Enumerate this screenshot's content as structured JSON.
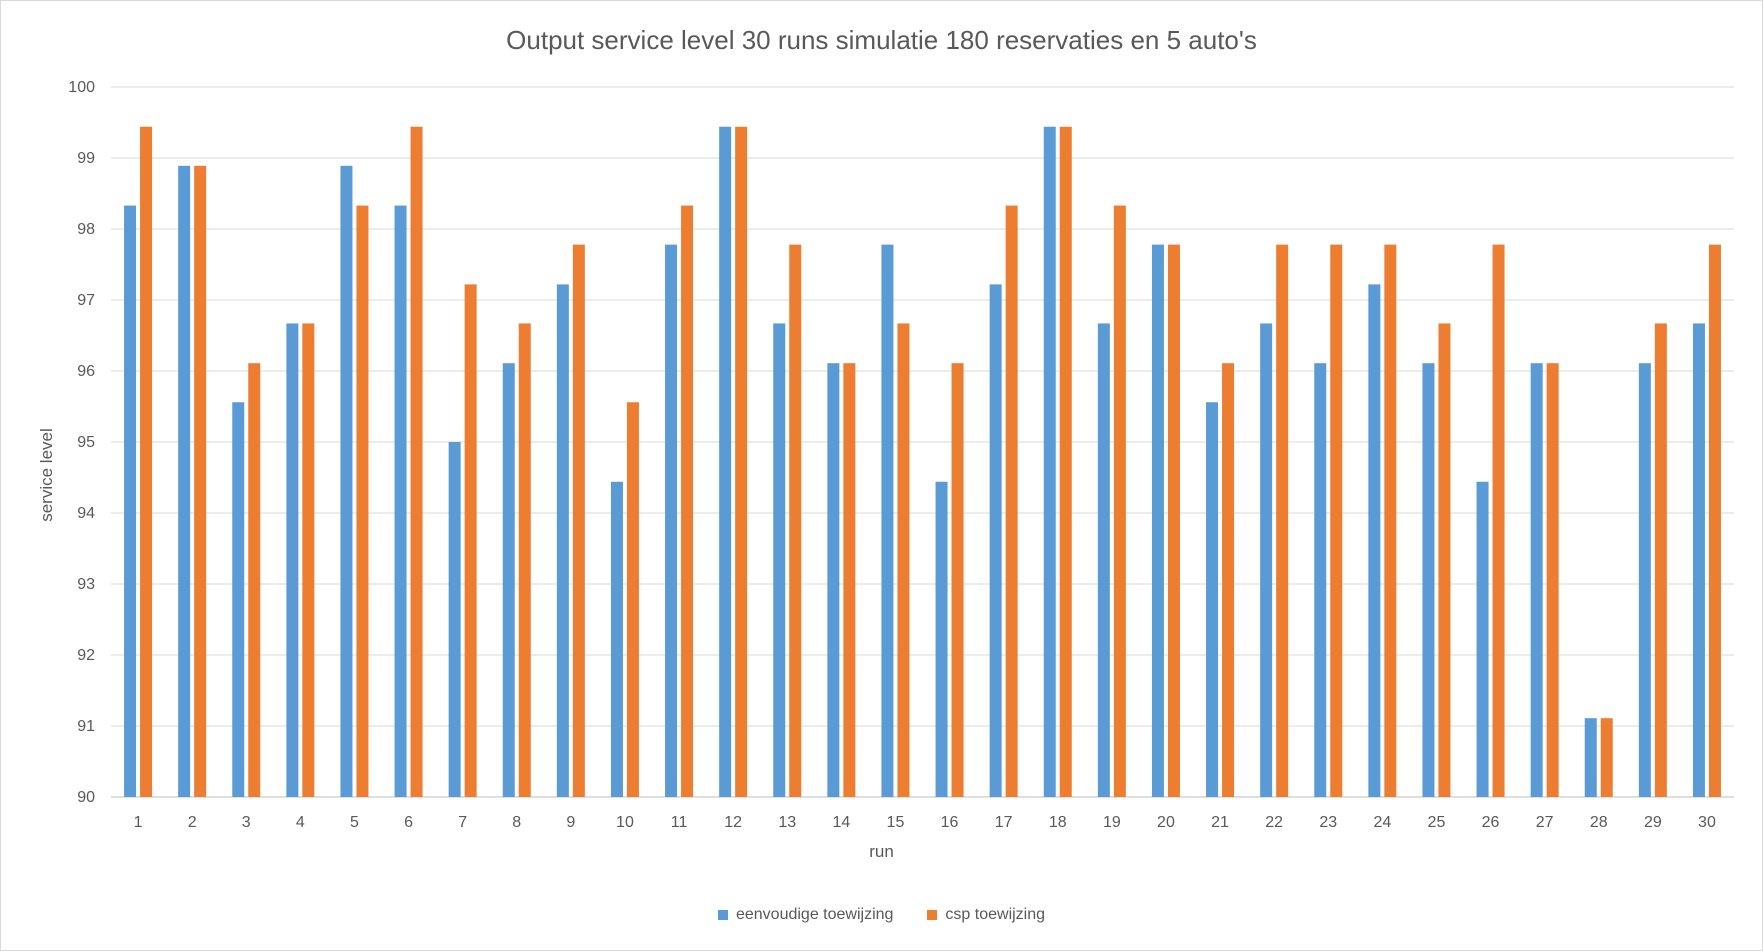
{
  "chart_data": {
    "type": "bar",
    "title": "Output service level 30 runs simulatie 180 reservaties en 5 auto's",
    "xlabel": "run",
    "ylabel": "service level",
    "ylim": [
      90,
      100
    ],
    "yticks": [
      "90",
      "91",
      "92",
      "93",
      "94",
      "95",
      "96",
      "97",
      "98",
      "99",
      "100"
    ],
    "grid": true,
    "legend_position": "bottom",
    "categories": [
      "1",
      "2",
      "3",
      "4",
      "5",
      "6",
      "7",
      "8",
      "9",
      "10",
      "11",
      "12",
      "13",
      "14",
      "15",
      "16",
      "17",
      "18",
      "19",
      "20",
      "21",
      "22",
      "23",
      "24",
      "25",
      "26",
      "27",
      "28",
      "29",
      "30"
    ],
    "series": [
      {
        "name": "eenvoudige toewijzing",
        "color": "#5b9bd5",
        "values": [
          98.33,
          98.89,
          95.56,
          96.67,
          98.89,
          98.33,
          95.0,
          96.11,
          97.22,
          94.44,
          97.78,
          99.44,
          96.67,
          96.11,
          97.78,
          94.44,
          97.22,
          99.44,
          96.67,
          97.78,
          95.56,
          96.67,
          96.11,
          97.22,
          96.11,
          94.44,
          96.11,
          91.11,
          96.11,
          96.67
        ]
      },
      {
        "name": "csp toewijzing",
        "color": "#ed7d31",
        "values": [
          99.44,
          98.89,
          96.11,
          96.67,
          98.33,
          99.44,
          97.22,
          96.67,
          97.78,
          95.56,
          98.33,
          99.44,
          97.78,
          96.11,
          96.67,
          96.11,
          98.33,
          99.44,
          98.33,
          97.78,
          96.11,
          97.78,
          97.78,
          97.78,
          96.67,
          97.78,
          96.11,
          91.11,
          96.67,
          97.78
        ]
      }
    ]
  }
}
